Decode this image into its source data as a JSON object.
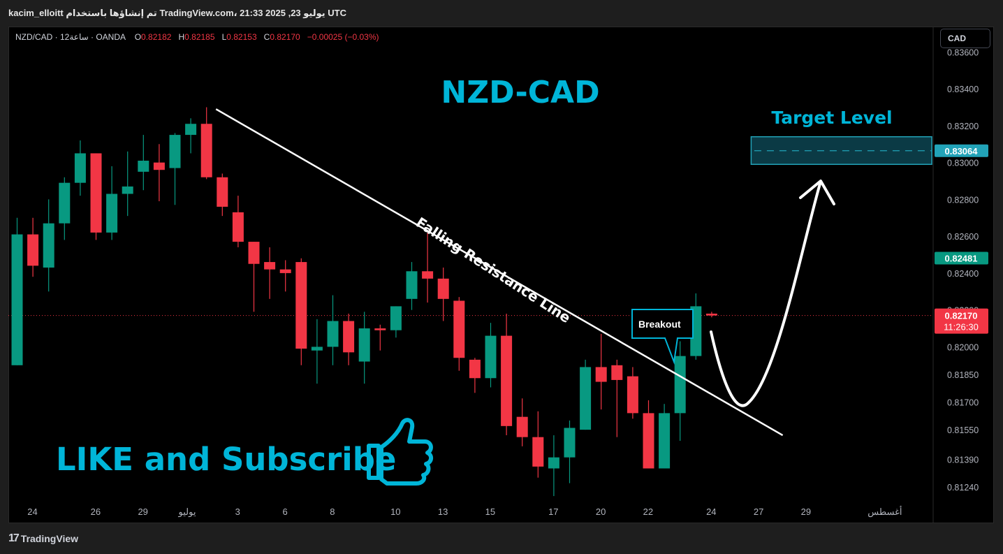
{
  "header": {
    "text": "kacim_elloitt تم إنشاؤها باستخدام TradingView.com، 21:33 2025 ,23 يوليو UTC"
  },
  "legend": {
    "symbol": "NZD/CAD · 12ساعة · OANDA",
    "o_label": "O",
    "o": "0.82182",
    "h_label": "H",
    "h": "0.82185",
    "l_label": "L",
    "l": "0.82153",
    "c_label": "C",
    "c": "0.82170",
    "change": "−0.00025 (−0.03%)"
  },
  "currency_button": "CAD",
  "footer": {
    "logo": "17",
    "brand": "TradingView"
  },
  "colors": {
    "up": "#089981",
    "down": "#f23645",
    "annotation": "#00b5d8",
    "price_tag_current": "#f23645",
    "price_tag_teal": "#089981",
    "target_tag": "#22a3b8"
  },
  "chart_data": {
    "type": "candlestick",
    "title": "NZD-CAD",
    "ylim": [
      0.8116,
      0.837
    ],
    "y_ticks": [
      "0.83600",
      "0.83400",
      "0.83200",
      "0.83000",
      "0.82800",
      "0.82600",
      "0.82400",
      "0.82200",
      "0.82000",
      "0.81850",
      "0.81700",
      "0.81550",
      "0.81390",
      "0.81240"
    ],
    "x_ticks": [
      {
        "label": "24",
        "i": 0
      },
      {
        "label": "26",
        "i": 4
      },
      {
        "label": "29",
        "i": 7
      },
      {
        "label": "يوليو",
        "i": 9.8
      },
      {
        "label": "3",
        "i": 13
      },
      {
        "label": "6",
        "i": 16
      },
      {
        "label": "8",
        "i": 19
      },
      {
        "label": "10",
        "i": 23
      },
      {
        "label": "13",
        "i": 26
      },
      {
        "label": "15",
        "i": 29
      },
      {
        "label": "17",
        "i": 33
      },
      {
        "label": "20",
        "i": 36
      },
      {
        "label": "22",
        "i": 39
      },
      {
        "label": "24",
        "i": 43
      },
      {
        "label": "27",
        "i": 46
      },
      {
        "label": "29",
        "i": 49
      },
      {
        "label": "أغسطس",
        "i": 54
      }
    ],
    "candles": [
      {
        "o": 0.819,
        "h": 0.827,
        "l": 0.819,
        "c": 0.8261
      },
      {
        "o": 0.8261,
        "h": 0.827,
        "l": 0.8238,
        "c": 0.8244
      },
      {
        "o": 0.8243,
        "h": 0.828,
        "l": 0.823,
        "c": 0.8267
      },
      {
        "o": 0.8267,
        "h": 0.8292,
        "l": 0.8258,
        "c": 0.8289
      },
      {
        "o": 0.8289,
        "h": 0.8312,
        "l": 0.8282,
        "c": 0.8305
      },
      {
        "o": 0.8305,
        "h": 0.8305,
        "l": 0.8258,
        "c": 0.8262
      },
      {
        "o": 0.8262,
        "h": 0.8298,
        "l": 0.8258,
        "c": 0.8283
      },
      {
        "o": 0.8283,
        "h": 0.8306,
        "l": 0.8271,
        "c": 0.8287
      },
      {
        "o": 0.8295,
        "h": 0.8315,
        "l": 0.8285,
        "c": 0.8301
      },
      {
        "o": 0.83,
        "h": 0.831,
        "l": 0.8279,
        "c": 0.8296
      },
      {
        "o": 0.8297,
        "h": 0.8316,
        "l": 0.8277,
        "c": 0.8315
      },
      {
        "o": 0.8315,
        "h": 0.8324,
        "l": 0.8305,
        "c": 0.8321
      },
      {
        "o": 0.8321,
        "h": 0.833,
        "l": 0.8291,
        "c": 0.8292
      },
      {
        "o": 0.8292,
        "h": 0.8294,
        "l": 0.8271,
        "c": 0.8276
      },
      {
        "o": 0.8273,
        "h": 0.8282,
        "l": 0.8254,
        "c": 0.8257
      },
      {
        "o": 0.8257,
        "h": 0.8257,
        "l": 0.8219,
        "c": 0.8245
      },
      {
        "o": 0.8246,
        "h": 0.8254,
        "l": 0.8226,
        "c": 0.8242
      },
      {
        "o": 0.8242,
        "h": 0.8247,
        "l": 0.823,
        "c": 0.824
      },
      {
        "o": 0.8246,
        "h": 0.8248,
        "l": 0.819,
        "c": 0.8199
      },
      {
        "o": 0.8198,
        "h": 0.8215,
        "l": 0.818,
        "c": 0.82
      },
      {
        "o": 0.82,
        "h": 0.8228,
        "l": 0.819,
        "c": 0.8214
      },
      {
        "o": 0.8214,
        "h": 0.8218,
        "l": 0.819,
        "c": 0.8197
      },
      {
        "o": 0.8192,
        "h": 0.8219,
        "l": 0.818,
        "c": 0.821
      },
      {
        "o": 0.821,
        "h": 0.8212,
        "l": 0.8198,
        "c": 0.8209
      },
      {
        "o": 0.8209,
        "h": 0.8222,
        "l": 0.8205,
        "c": 0.8222
      },
      {
        "o": 0.8226,
        "h": 0.8246,
        "l": 0.822,
        "c": 0.8241
      },
      {
        "o": 0.8241,
        "h": 0.8262,
        "l": 0.8224,
        "c": 0.8237
      },
      {
        "o": 0.8237,
        "h": 0.8243,
        "l": 0.8214,
        "c": 0.8226
      },
      {
        "o": 0.8225,
        "h": 0.8227,
        "l": 0.8187,
        "c": 0.8194
      },
      {
        "o": 0.8193,
        "h": 0.8194,
        "l": 0.8175,
        "c": 0.8183
      },
      {
        "o": 0.8183,
        "h": 0.8213,
        "l": 0.8178,
        "c": 0.8206
      },
      {
        "o": 0.8206,
        "h": 0.8218,
        "l": 0.8152,
        "c": 0.8157
      },
      {
        "o": 0.8162,
        "h": 0.8172,
        "l": 0.8146,
        "c": 0.8151
      },
      {
        "o": 0.8151,
        "h": 0.8165,
        "l": 0.8129,
        "c": 0.8135
      },
      {
        "o": 0.8134,
        "h": 0.8152,
        "l": 0.8119,
        "c": 0.814
      },
      {
        "o": 0.814,
        "h": 0.816,
        "l": 0.8126,
        "c": 0.8156
      },
      {
        "o": 0.8155,
        "h": 0.8193,
        "l": 0.8155,
        "c": 0.8189
      },
      {
        "o": 0.8189,
        "h": 0.8207,
        "l": 0.8166,
        "c": 0.8181
      },
      {
        "o": 0.819,
        "h": 0.8193,
        "l": 0.8151,
        "c": 0.8182
      },
      {
        "o": 0.8184,
        "h": 0.8189,
        "l": 0.8161,
        "c": 0.8164
      },
      {
        "o": 0.8164,
        "h": 0.8171,
        "l": 0.8134,
        "c": 0.8134
      },
      {
        "o": 0.8134,
        "h": 0.8169,
        "l": 0.8134,
        "c": 0.8164
      },
      {
        "o": 0.8164,
        "h": 0.8203,
        "l": 0.8149,
        "c": 0.8195
      },
      {
        "o": 0.8195,
        "h": 0.8229,
        "l": 0.8193,
        "c": 0.8222
      },
      {
        "o": 0.8218,
        "h": 0.8219,
        "l": 0.8216,
        "c": 0.8217
      }
    ],
    "current_price": "0.82170",
    "countdown": "11:26:30",
    "teal_tag_price": "0.82481",
    "target_price": "0.83064",
    "target_zone": [
      0.8299,
      0.8314
    ],
    "annotations": {
      "title": "NZD-CAD",
      "target_label": "Target Level",
      "trendline_label": "Falling Resistance Line",
      "breakout_label": "Breakout",
      "like_text": "LIKE and Subscribe"
    }
  }
}
